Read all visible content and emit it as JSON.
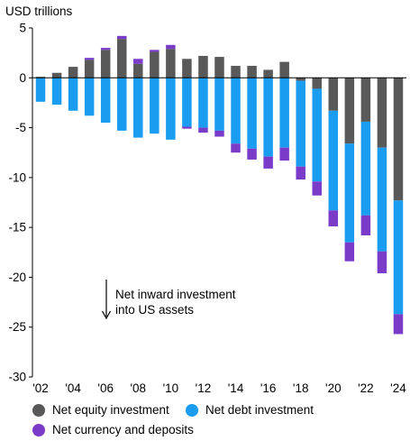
{
  "chart_data": {
    "type": "bar",
    "stacked": true,
    "ylabel": "USD trillions",
    "ylim": [
      -30,
      5
    ],
    "yticks": [
      5,
      0,
      -5,
      -10,
      -15,
      -20,
      -25,
      -30
    ],
    "x_tick_labels": [
      "'02",
      "'04",
      "'06",
      "'08",
      "'10",
      "'12",
      "'14",
      "'16",
      "'18",
      "'20",
      "'22",
      "'24"
    ],
    "categories": [
      "2002",
      "2003",
      "2004",
      "2005",
      "2006",
      "2007",
      "2008",
      "2009",
      "2010",
      "2011",
      "2012",
      "2013",
      "2014",
      "2015",
      "2016",
      "2017",
      "2018",
      "2019",
      "2020",
      "2021",
      "2022",
      "2023",
      "2024"
    ],
    "series": [
      {
        "name": "Net equity investment",
        "color": "#595959",
        "values": [
          0.1,
          0.5,
          1.1,
          1.8,
          2.8,
          3.9,
          1.4,
          2.6,
          2.9,
          1.9,
          2.2,
          2.1,
          1.2,
          1.2,
          0.8,
          1.6,
          -0.3,
          -1.1,
          -3.3,
          -6.6,
          -4.4,
          -7.0,
          -12.3
        ]
      },
      {
        "name": "Net debt investment",
        "color": "#1a9cf0",
        "values": [
          -2.4,
          -2.7,
          -3.3,
          -3.8,
          -4.5,
          -5.3,
          -6.0,
          -5.6,
          -6.2,
          -4.9,
          -5.0,
          -5.3,
          -6.6,
          -7.1,
          -7.9,
          -7.0,
          -8.6,
          -9.3,
          -10.0,
          -9.9,
          -9.4,
          -10.4,
          -11.4
        ]
      },
      {
        "name": "Net currency and deposits",
        "color": "#7a3cc8",
        "values": [
          0.0,
          0.0,
          0.0,
          0.2,
          0.2,
          0.3,
          0.5,
          0.2,
          0.4,
          -0.2,
          -0.5,
          -0.6,
          -0.9,
          -1.1,
          -1.2,
          -1.3,
          -1.3,
          -1.4,
          -1.6,
          -1.9,
          -2.0,
          -2.2,
          -2.0
        ]
      }
    ],
    "annotation": [
      "Net inward investment",
      "into US assets"
    ],
    "legend_position": "bottom",
    "grid": false
  }
}
